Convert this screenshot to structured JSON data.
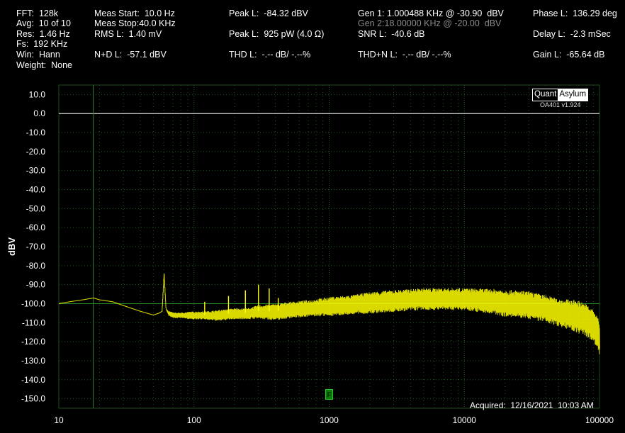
{
  "header": {
    "fft": "FFT:  128k",
    "avg": "Avg:  10 of 10",
    "res": "Res:  1.46 Hz",
    "fs": "Fs:  192 KHz",
    "win": "Win:  Hann",
    "weight": "Weight:  None",
    "meas_start": "Meas Start:  10.0 Hz",
    "meas_stop": "Meas Stop:40.0 KHz",
    "rms": "RMS L:  1.40 mV",
    "nd": "N+D L:  -57.1 dBV",
    "peak_dbv": "Peak L:  -84.32 dBV",
    "peak_pw": "Peak L:  925 pW (4.0 Ω)",
    "thd": "THD L:  -.-- dB/ -.--%",
    "gen1": "Gen 1: 1.000488 KHz @ -30.90  dBV",
    "gen2": "Gen 2:18.00000 KHz @ -20.00  dBV",
    "snr": "SNR L:  -40.6 dB",
    "thdn": "THD+N L:  -.-- dB/ -.--%",
    "phase": "Phase L:  136.29 deg",
    "delay": "Delay L:  -2.3 mSec",
    "gain": "Gain L:  -65.64 dB"
  },
  "logo": {
    "quant": "Quant",
    "asylum": "Asylum",
    "version": "OA401 v1.924"
  },
  "acquired": "Acquired:  12/16/2021  10:03 AM",
  "marker_label": "F",
  "colors": {
    "trace": "#ffff00",
    "grid": "#1e5a1e",
    "zero_line": "#ffffff",
    "ref_line": "#2a8a2a"
  },
  "chart_data": {
    "type": "line",
    "title": "",
    "xlabel": "",
    "ylabel": "dBV",
    "x_scale": "log",
    "xlim": [
      10,
      100000
    ],
    "ylim": [
      -155,
      15
    ],
    "x_ticks": [
      10,
      100,
      1000,
      10000,
      100000
    ],
    "x_tick_labels": [
      "10",
      "100",
      "1000",
      "10000",
      "100000"
    ],
    "y_ticks": [
      10,
      0,
      -10,
      -20,
      -30,
      -40,
      -50,
      -60,
      -70,
      -80,
      -90,
      -100,
      -110,
      -120,
      -130,
      -140,
      -150
    ],
    "y_tick_labels": [
      "10.0",
      "0.0",
      "-10.0",
      "-20.0",
      "-30.0",
      "-40.0",
      "-50.0",
      "-60.0",
      "-70.0",
      "-80.0",
      "-90.0",
      "-100.0",
      "-110.0",
      "-120.0",
      "-130.0",
      "-140.0",
      "-150.0"
    ],
    "grid": true,
    "reference_lines_y": [
      0,
      -100
    ],
    "reference_line_x": 18,
    "series": [
      {
        "color": "#ffff00",
        "x": [
          10,
          12,
          15,
          18,
          20,
          25,
          30,
          40,
          50,
          55,
          58,
          60,
          62,
          65,
          70,
          80,
          100,
          120,
          150,
          200,
          250,
          300,
          400,
          500,
          700,
          1000,
          1500,
          2000,
          3000,
          5000,
          7000,
          10000,
          15000,
          20000,
          30000,
          40000,
          50000,
          60000,
          70000,
          80000,
          90000,
          95000,
          100000
        ],
        "center": [
          -100,
          -99,
          -98,
          -97,
          -98,
          -99,
          -101,
          -104,
          -106,
          -105,
          -104,
          -84,
          -103,
          -105,
          -106,
          -106,
          -106,
          -106,
          -106,
          -105,
          -105,
          -104,
          -104,
          -103,
          -102,
          -101,
          -100,
          -99,
          -98,
          -97,
          -97,
          -97,
          -98,
          -99,
          -100,
          -102,
          -104,
          -105,
          -106,
          -108,
          -111,
          -113,
          -118
        ],
        "spread": [
          0,
          0,
          0,
          0,
          0,
          0,
          0,
          0,
          0,
          0,
          0,
          0,
          0,
          1,
          1,
          1,
          1.5,
          1.5,
          2,
          2,
          2,
          2.5,
          3,
          3,
          3,
          3.5,
          3.5,
          4,
          4,
          4,
          4,
          4,
          4.5,
          5,
          5,
          5,
          5,
          5.5,
          6,
          6,
          6,
          6,
          6
        ],
        "spurs": [
          {
            "x": 60,
            "y": -84
          },
          {
            "x": 120,
            "y": -99
          },
          {
            "x": 180,
            "y": -96
          },
          {
            "x": 240,
            "y": -93
          },
          {
            "x": 300,
            "y": -90
          },
          {
            "x": 360,
            "y": -92
          },
          {
            "x": 420,
            "y": -97
          }
        ]
      }
    ]
  }
}
